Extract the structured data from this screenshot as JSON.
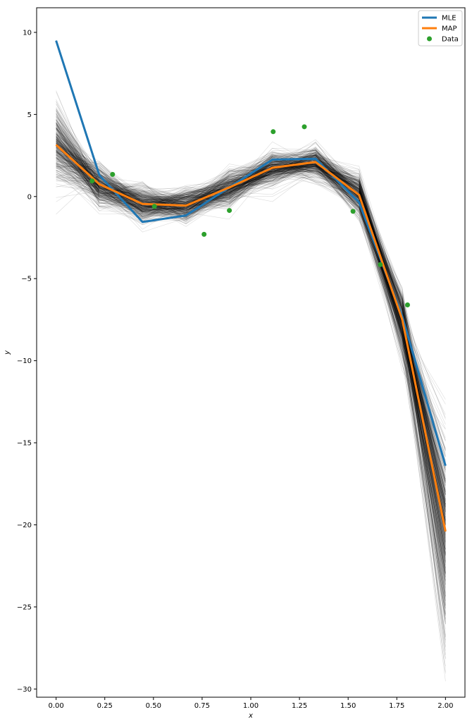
{
  "chart_data": {
    "type": "line",
    "title": "",
    "xlabel": "x",
    "ylabel": "y",
    "xlim": [
      -0.1,
      2.1
    ],
    "ylim": [
      -30.5,
      11.5
    ],
    "xticks": [
      0.0,
      0.25,
      0.5,
      0.75,
      1.0,
      1.25,
      1.5,
      1.75,
      2.0
    ],
    "xtick_labels": [
      "0.00",
      "0.25",
      "0.50",
      "0.75",
      "1.00",
      "1.25",
      "1.50",
      "1.75",
      "2.00"
    ],
    "yticks": [
      10,
      5,
      0,
      -5,
      -10,
      -15,
      -20,
      -25,
      -30
    ],
    "ytick_labels": [
      "10",
      "5",
      "0",
      "−5",
      "−10",
      "−15",
      "−20",
      "−25",
      "−30"
    ],
    "grid": false,
    "legend_position": "top-right",
    "posterior_samples": {
      "description_visible": false,
      "count": 400,
      "color": "#000000",
      "x": [
        0.0,
        0.222,
        0.444,
        0.667,
        0.889,
        1.111,
        1.333,
        1.556,
        1.778,
        2.0
      ],
      "mean": [
        3.1,
        0.7,
        -0.5,
        -0.55,
        0.5,
        1.7,
        2.05,
        0.1,
        -7.6,
        -20.5
      ],
      "spread": [
        1.2,
        0.6,
        0.5,
        0.5,
        0.5,
        0.5,
        0.45,
        0.6,
        0.9,
        3.0
      ]
    },
    "series": [
      {
        "name": "MLE",
        "color": "#1f77b4",
        "x": [
          0.0,
          0.222,
          0.444,
          0.667,
          0.889,
          1.111,
          1.333,
          1.556,
          1.778,
          2.0
        ],
        "y": [
          9.5,
          1.3,
          -1.55,
          -1.15,
          0.55,
          2.25,
          2.3,
          -0.35,
          -7.3,
          -16.4
        ]
      },
      {
        "name": "MAP",
        "color": "#ff7f0e",
        "x": [
          0.0,
          0.222,
          0.444,
          0.667,
          0.889,
          1.111,
          1.333,
          1.556,
          1.778,
          2.0
        ],
        "y": [
          3.15,
          0.75,
          -0.45,
          -0.55,
          0.55,
          1.75,
          2.1,
          0.1,
          -7.5,
          -20.4
        ]
      }
    ],
    "scatter": {
      "name": "Data",
      "color": "#2ca02c",
      "x": [
        0.185,
        0.29,
        0.505,
        0.76,
        0.89,
        1.115,
        1.275,
        1.525,
        1.665,
        1.805
      ],
      "y": [
        0.95,
        1.35,
        -0.6,
        -2.3,
        -0.85,
        3.95,
        4.25,
        -0.9,
        -4.15,
        -6.6
      ]
    }
  }
}
